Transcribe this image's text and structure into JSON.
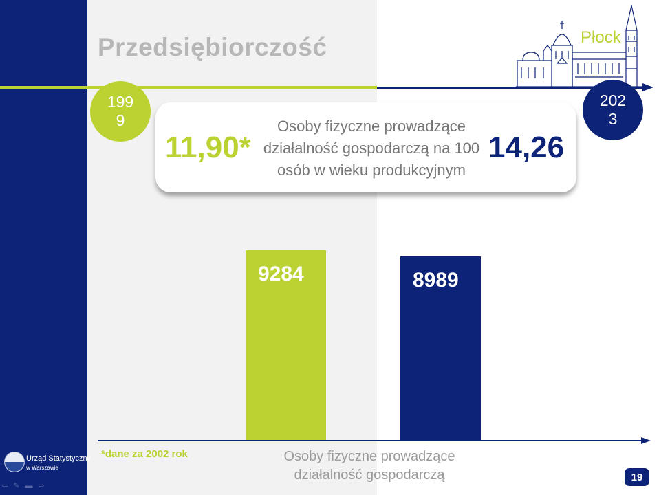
{
  "slide": {
    "title": "Przedsiębiorczość",
    "city": "Płock",
    "page_number": "19"
  },
  "timeline": {
    "start_year": "1999",
    "end_year": "2023"
  },
  "summary": {
    "left_value": "11,90*",
    "right_value": "14,26",
    "description": "Osoby fizyczne prowadzące działalność gospodarczą na 100 osób w wieku produkcyjnym"
  },
  "chart_data": {
    "type": "bar",
    "categories": [
      "1999",
      "2023"
    ],
    "values": [
      9284,
      8989
    ],
    "value_labels": [
      "9284",
      "8989"
    ],
    "colors": [
      "#bcd132",
      "#0d2378"
    ],
    "xlabel": "Osoby fizyczne prowadzące działalność gospodarczą",
    "ylabel": "",
    "title": ""
  },
  "footnote": "*dane za 2002 rok",
  "logo": {
    "name": "Urząd Statystyczny",
    "subtitle": "w Warszawie"
  },
  "nav": {
    "back": "⇦",
    "pen": "✎",
    "menu": "▬",
    "forward": "⇨"
  },
  "colors": {
    "navy": "#0d2378",
    "green": "#bcd132",
    "gray_panel": "#f2f2f2"
  }
}
